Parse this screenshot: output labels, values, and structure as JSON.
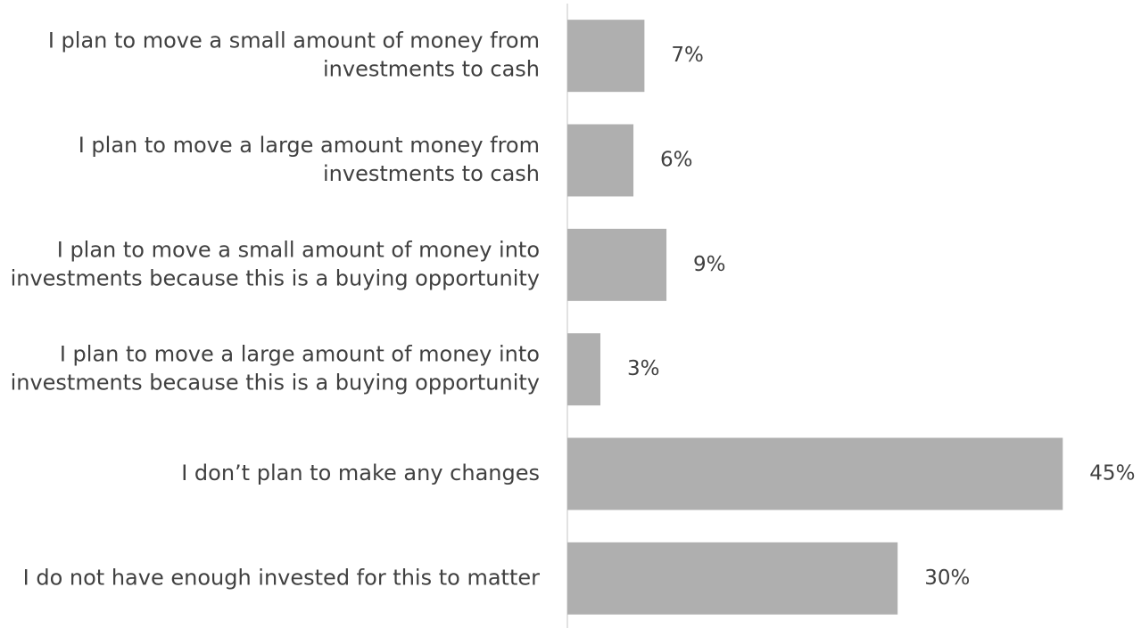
{
  "chart_data": {
    "type": "bar",
    "orientation": "horizontal",
    "categories": [
      "I plan to move a small amount of money from investments to cash",
      "I plan to move a large amount money from investments to cash",
      "I plan to move a small amount of money into investments because this is a buying opportunity",
      "I plan to move a large amount of money into investments because this is a buying opportunity",
      "I don’t plan to make any changes",
      "I do not have enough invested for this to matter"
    ],
    "values": [
      7,
      6,
      9,
      3,
      45,
      30
    ],
    "value_labels": [
      "7%",
      "6%",
      "9%",
      "3%",
      "45%",
      "30%"
    ],
    "color": "#afafaf",
    "xlim": [
      0,
      50
    ],
    "grid": false
  }
}
